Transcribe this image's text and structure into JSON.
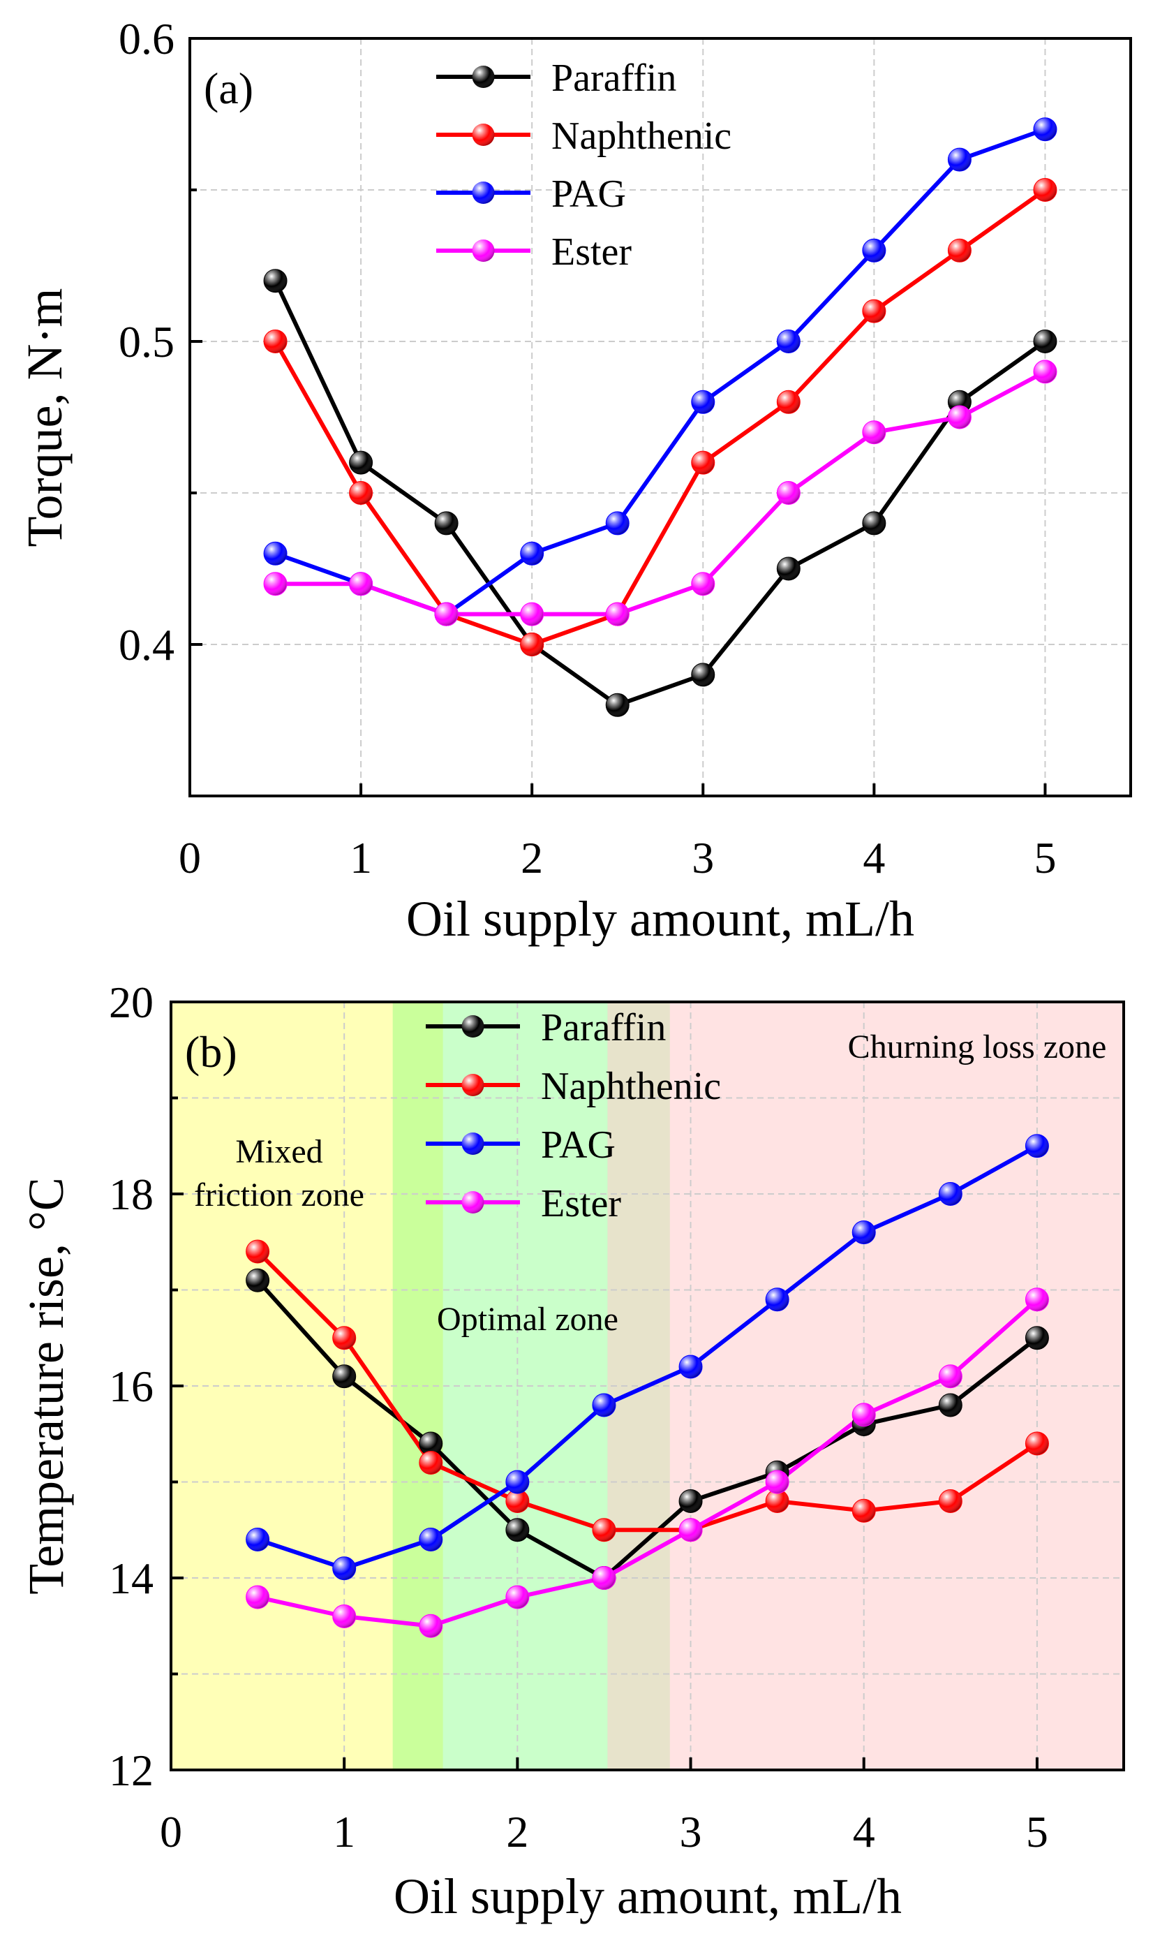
{
  "chart_data": [
    {
      "type": "line",
      "panel_label": "(a)",
      "xlabel": "Oil supply amount, mL/h",
      "ylabel": "Torque, N·m",
      "xlim": [
        0,
        5.5
      ],
      "ylim": [
        0.35,
        0.6
      ],
      "xticks": [
        0,
        1,
        2,
        3,
        4,
        5
      ],
      "xtick_labels": [
        "0",
        "1",
        "2",
        "3",
        "4",
        "5"
      ],
      "yticks": [
        0.4,
        0.5,
        0.6
      ],
      "ytick_labels": [
        "0.4",
        "0.5",
        "0.6"
      ],
      "grid": true,
      "legend_position": "top-center",
      "x": [
        0.5,
        1,
        1.5,
        2,
        2.5,
        3,
        3.5,
        4,
        4.5,
        5
      ],
      "series": [
        {
          "name": "Paraffin",
          "color": "#000000",
          "values": [
            0.52,
            0.46,
            0.44,
            0.4,
            0.38,
            0.39,
            0.425,
            0.44,
            0.48,
            0.5
          ]
        },
        {
          "name": "Naphthenic",
          "color": "#ff0000",
          "values": [
            0.5,
            0.45,
            0.41,
            0.4,
            0.41,
            0.46,
            0.48,
            0.51,
            0.53,
            0.55
          ]
        },
        {
          "name": "PAG",
          "color": "#0000ff",
          "values": [
            0.43,
            0.42,
            0.41,
            0.43,
            0.44,
            0.48,
            0.5,
            0.53,
            0.56,
            0.57
          ]
        },
        {
          "name": "Ester",
          "color": "#ff00ff",
          "values": [
            0.42,
            0.42,
            0.41,
            0.41,
            0.41,
            0.42,
            0.45,
            0.47,
            0.475,
            0.49
          ]
        }
      ]
    },
    {
      "type": "line",
      "panel_label": "(b)",
      "xlabel": "Oil supply amount, mL/h",
      "ylabel": "Temperature rise, °C",
      "xlim": [
        0,
        5.5
      ],
      "ylim": [
        12,
        20
      ],
      "xticks": [
        0,
        1,
        2,
        3,
        4,
        5
      ],
      "xtick_labels": [
        "0",
        "1",
        "2",
        "3",
        "4",
        "5"
      ],
      "yticks": [
        12,
        14,
        16,
        18,
        20
      ],
      "ytick_labels": [
        "12",
        "14",
        "16",
        "18",
        "20"
      ],
      "grid": true,
      "legend_position": "top-center",
      "x": [
        0.5,
        1,
        1.5,
        2,
        2.5,
        3,
        3.5,
        4,
        4.5,
        5
      ],
      "series": [
        {
          "name": "Paraffin",
          "color": "#000000",
          "values": [
            17.1,
            16.1,
            15.4,
            14.5,
            14.0,
            14.8,
            15.1,
            15.6,
            15.8,
            16.5
          ]
        },
        {
          "name": "Naphthenic",
          "color": "#ff0000",
          "values": [
            17.4,
            16.5,
            15.2,
            14.8,
            14.5,
            14.5,
            14.8,
            14.7,
            14.8,
            15.4
          ]
        },
        {
          "name": "PAG",
          "color": "#0000ff",
          "values": [
            14.4,
            14.1,
            14.4,
            15.0,
            15.8,
            16.2,
            16.9,
            17.6,
            18.0,
            18.5
          ]
        },
        {
          "name": "Ester",
          "color": "#ff00ff",
          "values": [
            13.8,
            13.6,
            13.5,
            13.8,
            14.0,
            14.5,
            15.0,
            15.7,
            16.1,
            16.9
          ]
        }
      ],
      "zones": [
        {
          "name": "Mixed friction zone",
          "label_lines": [
            "Mixed",
            "friction zone"
          ],
          "x_range": [
            0,
            1.57
          ],
          "color": "#ffff99"
        },
        {
          "name": "Optimal zone",
          "label_lines": [
            "Optimal zone"
          ],
          "x_range": [
            1.28,
            2.88
          ],
          "color": "#66ff66"
        },
        {
          "name": "Churning loss zone",
          "label_lines": [
            "Churning loss zone"
          ],
          "x_range": [
            2.52,
            5.5
          ],
          "color": "#ffcccc"
        }
      ]
    }
  ]
}
